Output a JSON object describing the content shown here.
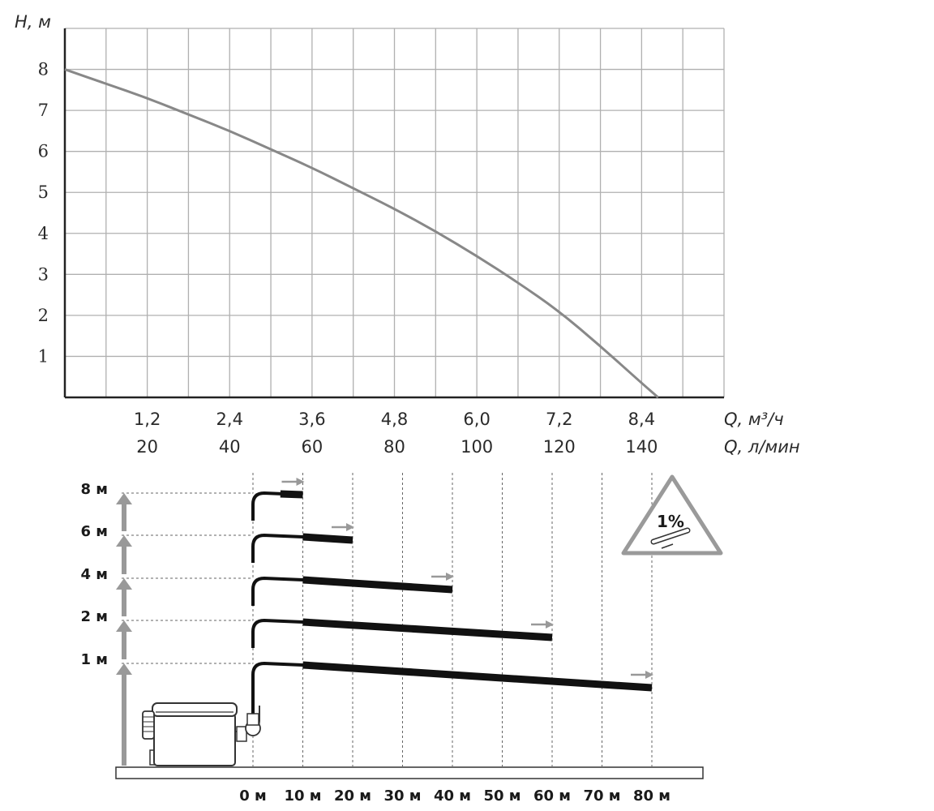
{
  "chart_data": [
    {
      "type": "line",
      "ylabel": "H, м",
      "xlabel_top": "Q, м³/ч",
      "xlabel_bottom": "Q, л/мин",
      "y_ticks": [
        "1",
        "2",
        "3",
        "4",
        "5",
        "6",
        "7",
        "8"
      ],
      "x_ticks_m3h": [
        "1,2",
        "2,4",
        "3,6",
        "4,8",
        "6,0",
        "7,2",
        "8,4"
      ],
      "x_ticks_lmin": [
        "20",
        "40",
        "60",
        "80",
        "100",
        "120",
        "140"
      ],
      "xlim_lmin": [
        0,
        160
      ],
      "ylim": [
        0,
        9
      ],
      "grid": true,
      "colors": {
        "grid": "#b0b0b0",
        "curve": "#888888",
        "axis": "#222222"
      },
      "series": [
        {
          "x": [
            0,
            10,
            20,
            30,
            40,
            50,
            60,
            70,
            80,
            90,
            100,
            110,
            120,
            130,
            140,
            144
          ],
          "values": [
            8.0,
            7.65,
            7.3,
            6.9,
            6.5,
            6.05,
            5.6,
            5.1,
            4.6,
            4.05,
            3.45,
            2.8,
            2.1,
            1.25,
            0.35,
            0.0
          ]
        }
      ]
    },
    {
      "type": "diagram",
      "height_labels": [
        "8 м",
        "6 м",
        "4 м",
        "2 м",
        "1 м"
      ],
      "distance_labels": [
        "0 м",
        "10 м",
        "20 м",
        "30 м",
        "40 м",
        "50 м",
        "60 м",
        "70 м",
        "80 м"
      ],
      "pipes": [
        {
          "height_m": 8,
          "length_m": 10
        },
        {
          "height_m": 6,
          "length_m": 20
        },
        {
          "height_m": 4,
          "length_m": 40
        },
        {
          "height_m": 2,
          "length_m": 60
        },
        {
          "height_m": 1,
          "length_m": 80
        }
      ],
      "slope_badge": "1%",
      "colors": {
        "arrow": "#999999",
        "pipe": "#111111",
        "badge": "#9a9a9a"
      }
    }
  ]
}
